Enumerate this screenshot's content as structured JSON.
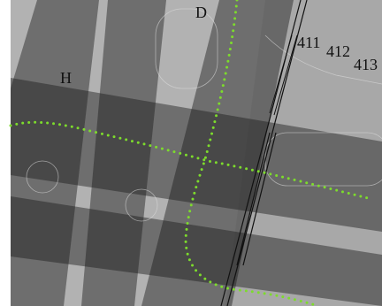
{
  "labels": {
    "taxiway_d": "D",
    "taxiway_h": "H",
    "stand_411": "411",
    "stand_412": "412",
    "stand_413": "413"
  }
}
